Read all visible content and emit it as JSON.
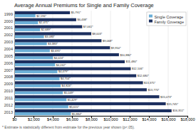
{
  "chart_data": {
    "type": "bar",
    "orientation": "horizontal",
    "title": "Average Annual Premiums for Single and Family Coverage",
    "categories": [
      "1999",
      "2000",
      "2001",
      "2002",
      "2003",
      "2004",
      "2005",
      "2006",
      "2007",
      "2008",
      "2009",
      "2010",
      "2011",
      "2012",
      "2013"
    ],
    "series": [
      {
        "name": "Single Coverage",
        "color": "#6baed6",
        "values": [
          2196,
          2471,
          2689,
          3083,
          3383,
          3695,
          4024,
          4242,
          4479,
          4704,
          4824,
          5049,
          5429,
          5615,
          5884
        ],
        "value_labels": [
          "$2,196*",
          "$2,471*",
          "$2,689*",
          "$3,083*",
          "$3,383*",
          "$3,695*",
          "$4,024*",
          "$4,242*",
          "$4,479*",
          "$4,704*",
          "$4,824*",
          "$5,049*",
          "$5,429*",
          "$5,615*",
          "$5,884*"
        ]
      },
      {
        "name": "Family Coverage",
        "color": "#1c2f5e",
        "values": [
          5791,
          6438,
          7061,
          8003,
          9068,
          9950,
          10880,
          11480,
          12106,
          12680,
          13375,
          13770,
          15073,
          15745,
          16351
        ],
        "value_labels": [
          "$5,791*",
          "$6,438*",
          "$7,061*",
          "$8,003*",
          "$9,068*",
          "$9,950*",
          "$10,880*",
          "$11,480*",
          "$12,106*",
          "$12,680*",
          "$13,375*",
          "$13,770*",
          "$15,073*",
          "$15,745*",
          "$16,351*"
        ]
      }
    ],
    "xlim": [
      0,
      18000
    ],
    "xticks": [
      {
        "value": 0,
        "label": "$0"
      },
      {
        "value": 2000,
        "label": "$2,000"
      },
      {
        "value": 4000,
        "label": "$4,000"
      },
      {
        "value": 6000,
        "label": "$6,000"
      },
      {
        "value": 8000,
        "label": "$8,000"
      },
      {
        "value": 10000,
        "label": "$10,000"
      },
      {
        "value": 12000,
        "label": "$12,000"
      },
      {
        "value": 14000,
        "label": "$14,000"
      },
      {
        "value": 16000,
        "label": "$16,000"
      },
      {
        "value": 18000,
        "label": "$18,000"
      }
    ],
    "grid": true,
    "legend": "upper right",
    "data_labels": true,
    "annotations": [
      "* Estimate is statistically different from estimate for the previous year shown (p<.05)."
    ]
  }
}
